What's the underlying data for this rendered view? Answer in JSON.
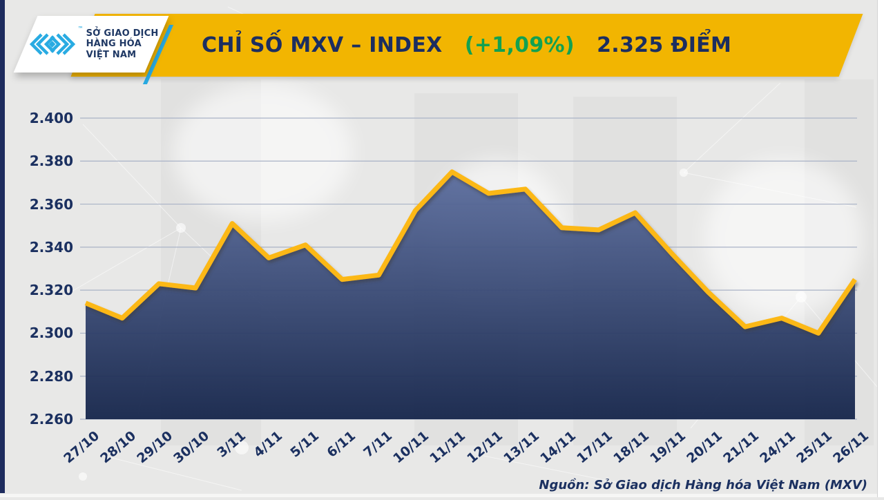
{
  "header": {
    "title_prefix": "CHỈ SỐ MXV – INDEX",
    "title_change": "(+1,09%)",
    "title_suffix": "2.325 ĐIỂM",
    "banner_color": "#f2b501",
    "change_color": "#12a151",
    "title_color": "#1c2e60"
  },
  "logo": {
    "line1": "SỞ GIAO DỊCH",
    "line2": "HÀNG HÓA",
    "line3": "VIỆT NAM",
    "trademark": "™",
    "mark_color": "#29abe2",
    "text_color": "#1f3864"
  },
  "chart_data": {
    "type": "area",
    "title": "CHỈ SỐ MXV – INDEX (+1,09%) 2.325 ĐIỂM",
    "x": [
      "27/10",
      "28/10",
      "29/10",
      "30/10",
      "3/11",
      "4/11",
      "5/11",
      "6/11",
      "7/11",
      "10/11",
      "11/11",
      "12/11",
      "13/11",
      "14/11",
      "17/11",
      "18/11",
      "19/11",
      "20/11",
      "21/11",
      "24/11",
      "25/11",
      "26/11"
    ],
    "values": [
      2.314,
      2.307,
      2.323,
      2.321,
      2.351,
      2.335,
      2.341,
      2.325,
      2.327,
      2.357,
      2.375,
      2.365,
      2.367,
      2.349,
      2.348,
      2.356,
      2.337,
      2.319,
      2.303,
      2.307,
      2.3,
      2.325
    ],
    "ylim": [
      2.26,
      2.4
    ],
    "yticks": [
      2.26,
      2.28,
      2.3,
      2.32,
      2.34,
      2.36,
      2.38,
      2.4
    ],
    "ytick_labels": [
      "2.260",
      "2.280",
      "2.300",
      "2.320",
      "2.340",
      "2.360",
      "2.380",
      "2.400"
    ],
    "grid": true,
    "legend": "none",
    "line_color": "#fcb813",
    "fill_top_color": "#5a6c9d",
    "fill_bottom_color": "#132349",
    "grid_color": "#a9b2c6",
    "axis_label_color": "#1b3060"
  },
  "footer": {
    "source": "Nguồn: Sở Giao dịch Hàng hóa Việt Nam (MXV)"
  }
}
